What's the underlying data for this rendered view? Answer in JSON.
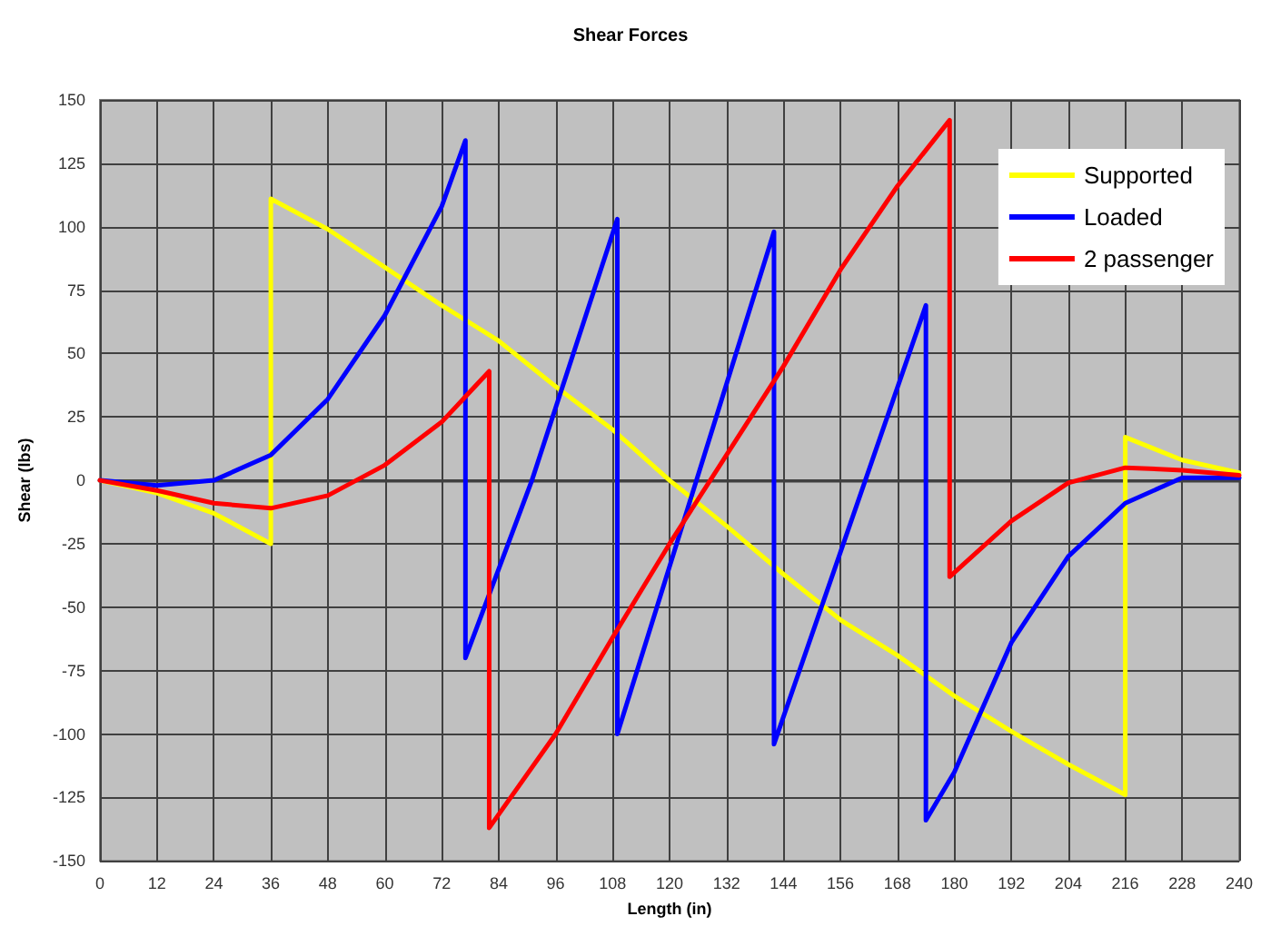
{
  "chart_data": {
    "type": "line",
    "title": "Shear Forces",
    "xlabel": "Length (in)",
    "ylabel": "Shear (lbs)",
    "xlim": [
      0,
      240
    ],
    "xticks": [
      0,
      12,
      24,
      36,
      48,
      60,
      72,
      84,
      96,
      108,
      120,
      132,
      144,
      156,
      168,
      180,
      192,
      204,
      216,
      228,
      240
    ],
    "ylim": [
      -150,
      150
    ],
    "yticks": [
      -150,
      -125,
      -100,
      -75,
      -50,
      -25,
      0,
      25,
      50,
      75,
      100,
      125,
      150
    ],
    "grid": true,
    "legend": "top right",
    "marker": "none",
    "line_style": "solid",
    "series": [
      {
        "name": "Supported",
        "color": "#ffff00",
        "x": [
          0,
          12,
          24,
          36,
          36,
          48,
          60,
          72,
          84,
          96,
          108,
          120,
          132,
          144,
          156,
          168,
          180,
          192,
          204,
          216,
          216,
          228,
          240
        ],
        "values": [
          0,
          -5,
          -13,
          -25,
          111,
          99,
          84,
          69,
          55,
          37,
          20,
          0,
          -18,
          -37,
          -55,
          -69,
          -85,
          -99,
          -112,
          -124,
          17,
          8,
          3
        ]
      },
      {
        "name": "Loaded",
        "color": "#0000ff",
        "x": [
          0,
          12,
          24,
          36,
          48,
          60,
          72,
          77,
          77,
          91,
          109,
          109,
          142,
          142,
          174,
          174,
          180,
          192,
          204,
          216,
          228,
          240
        ],
        "values": [
          0,
          -2,
          0,
          10,
          32,
          65,
          108,
          134,
          -70,
          0,
          103,
          -100,
          98,
          -104,
          69,
          -134,
          -115,
          -64,
          -30,
          -9,
          1,
          1
        ]
      },
      {
        "name": "2 passenger",
        "color": "#ff0000",
        "x": [
          0,
          12,
          24,
          36,
          48,
          60,
          72,
          82,
          82,
          96,
          108,
          120,
          132,
          144,
          156,
          168,
          179,
          179,
          192,
          204,
          216,
          228,
          240
        ],
        "values": [
          0,
          -4,
          -9,
          -11,
          -6,
          6,
          23,
          43,
          -137,
          -100,
          -62,
          -25,
          10,
          45,
          83,
          116,
          142,
          -38,
          -16,
          -1,
          5,
          4,
          2
        ]
      }
    ]
  }
}
